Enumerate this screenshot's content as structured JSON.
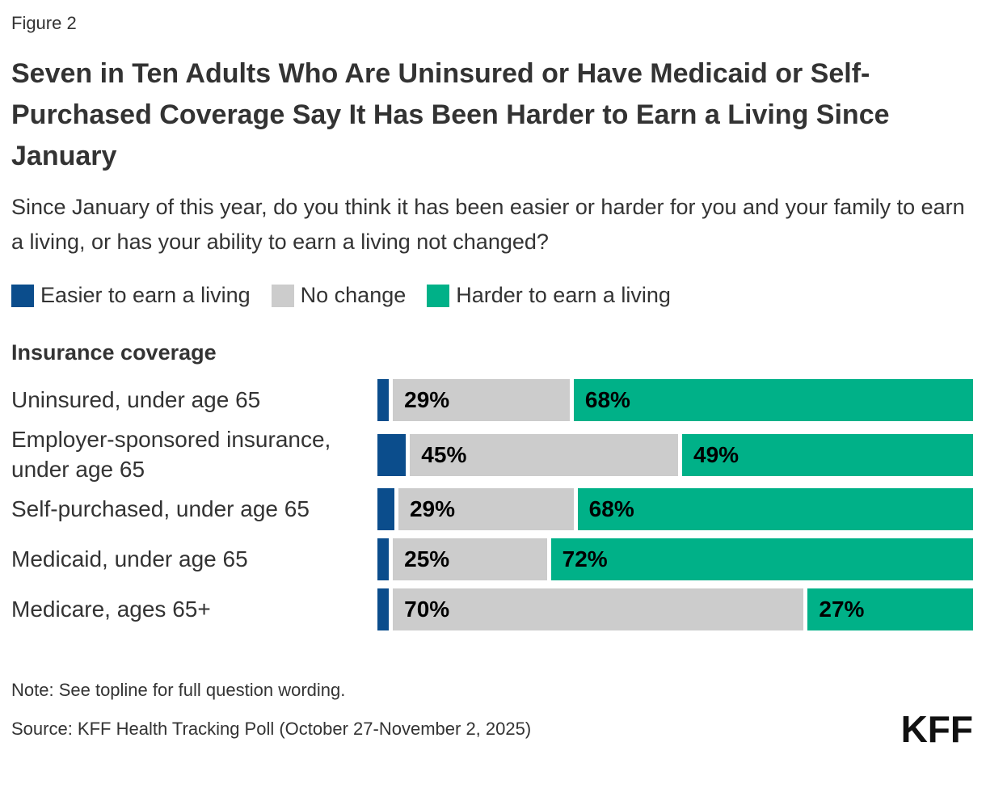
{
  "figure_label": "Figure 2",
  "title": "Seven in Ten Adults Who Are Uninsured or Have Medicaid or Self-Purchased Coverage Say It Has Been Harder to Earn a Living Since January",
  "subtitle": "Since January of this year, do you think it has been easier or harder for you and your family to earn a living, or has your ability to earn a living not changed?",
  "section_label": "Insurance coverage",
  "note": "Note: See topline for full question wording.",
  "source": "Source: KFF Health Tracking Poll (October 27-November 2, 2025)",
  "logo_text": "KFF",
  "colors": {
    "easier_blue": "#0B4D8C",
    "no_change_gray": "#CCCCCC",
    "harder_green": "#00B188",
    "text_dark": "#333333",
    "percent_label": "#000000"
  },
  "chart_data": {
    "type": "bar",
    "orientation": "horizontal",
    "stacked": true,
    "unit": "%",
    "xlim": [
      0,
      100
    ],
    "grid": false,
    "legend_position": "top",
    "group_header": "Insurance coverage",
    "categories": [
      "Uninsured, under age 65",
      "Employer-sponsored insurance, under age 65",
      "Self-purchased, under age 65",
      "Medicaid, under age 65",
      "Medicare, ages 65+"
    ],
    "series": [
      {
        "name": "Easier to earn a living",
        "color": "#0B4D8C",
        "values": [
          2,
          5,
          3,
          2,
          2
        ],
        "labels_visible": false,
        "values_estimated_from_bar_widths": true
      },
      {
        "name": "No change",
        "color": "#CCCCCC",
        "values": [
          29,
          45,
          29,
          25,
          70
        ],
        "labels_visible": true
      },
      {
        "name": "Harder to earn a living",
        "color": "#00B188",
        "values": [
          68,
          49,
          68,
          72,
          27
        ],
        "labels_visible": true
      }
    ]
  }
}
